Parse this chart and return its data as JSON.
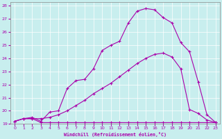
{
  "xlabel": "Windchill (Refroidissement éolien,°C)",
  "xlim": [
    -0.5,
    23.5
  ],
  "ylim": [
    19,
    28.3
  ],
  "yticks": [
    19,
    20,
    21,
    22,
    23,
    24,
    25,
    26,
    27,
    28
  ],
  "xticks": [
    0,
    1,
    2,
    3,
    4,
    5,
    6,
    7,
    8,
    9,
    10,
    11,
    12,
    13,
    14,
    15,
    16,
    17,
    18,
    19,
    20,
    21,
    22,
    23
  ],
  "bg_color": "#c8eeee",
  "line_color": "#aa00aa",
  "line1_x": [
    0,
    1,
    2,
    3,
    4,
    5,
    6,
    7,
    8,
    9,
    10,
    11,
    12,
    13,
    14,
    15,
    16,
    17,
    18,
    19,
    20,
    21,
    22,
    23
  ],
  "line1_y": [
    19.2,
    19.4,
    19.4,
    19.1,
    19.1,
    19.1,
    19.1,
    19.1,
    19.1,
    19.1,
    19.1,
    19.1,
    19.1,
    19.1,
    19.1,
    19.1,
    19.1,
    19.1,
    19.1,
    19.1,
    19.1,
    19.1,
    19.1,
    19.1
  ],
  "line2_x": [
    0,
    1,
    2,
    3,
    4,
    5,
    6,
    7,
    8,
    9,
    10,
    11,
    12,
    13,
    14,
    15,
    16,
    17,
    18,
    19,
    20,
    21,
    22,
    23
  ],
  "line2_y": [
    19.2,
    19.4,
    19.4,
    19.4,
    19.5,
    19.7,
    20.0,
    20.4,
    20.8,
    21.3,
    21.7,
    22.1,
    22.6,
    23.1,
    23.6,
    24.0,
    24.3,
    24.4,
    24.1,
    23.2,
    20.1,
    19.8,
    19.3,
    19.1
  ],
  "line3_x": [
    0,
    1,
    2,
    3,
    4,
    5,
    6,
    7,
    8,
    9,
    10,
    11,
    12,
    13,
    14,
    15,
    16,
    17,
    18,
    19,
    20,
    21,
    22,
    23
  ],
  "line3_y": [
    19.2,
    19.4,
    19.5,
    19.2,
    19.9,
    20.0,
    21.7,
    22.3,
    22.4,
    23.2,
    24.6,
    25.0,
    25.3,
    26.7,
    27.6,
    27.8,
    27.7,
    27.1,
    26.7,
    25.2,
    24.5,
    22.2,
    19.7,
    19.1
  ]
}
